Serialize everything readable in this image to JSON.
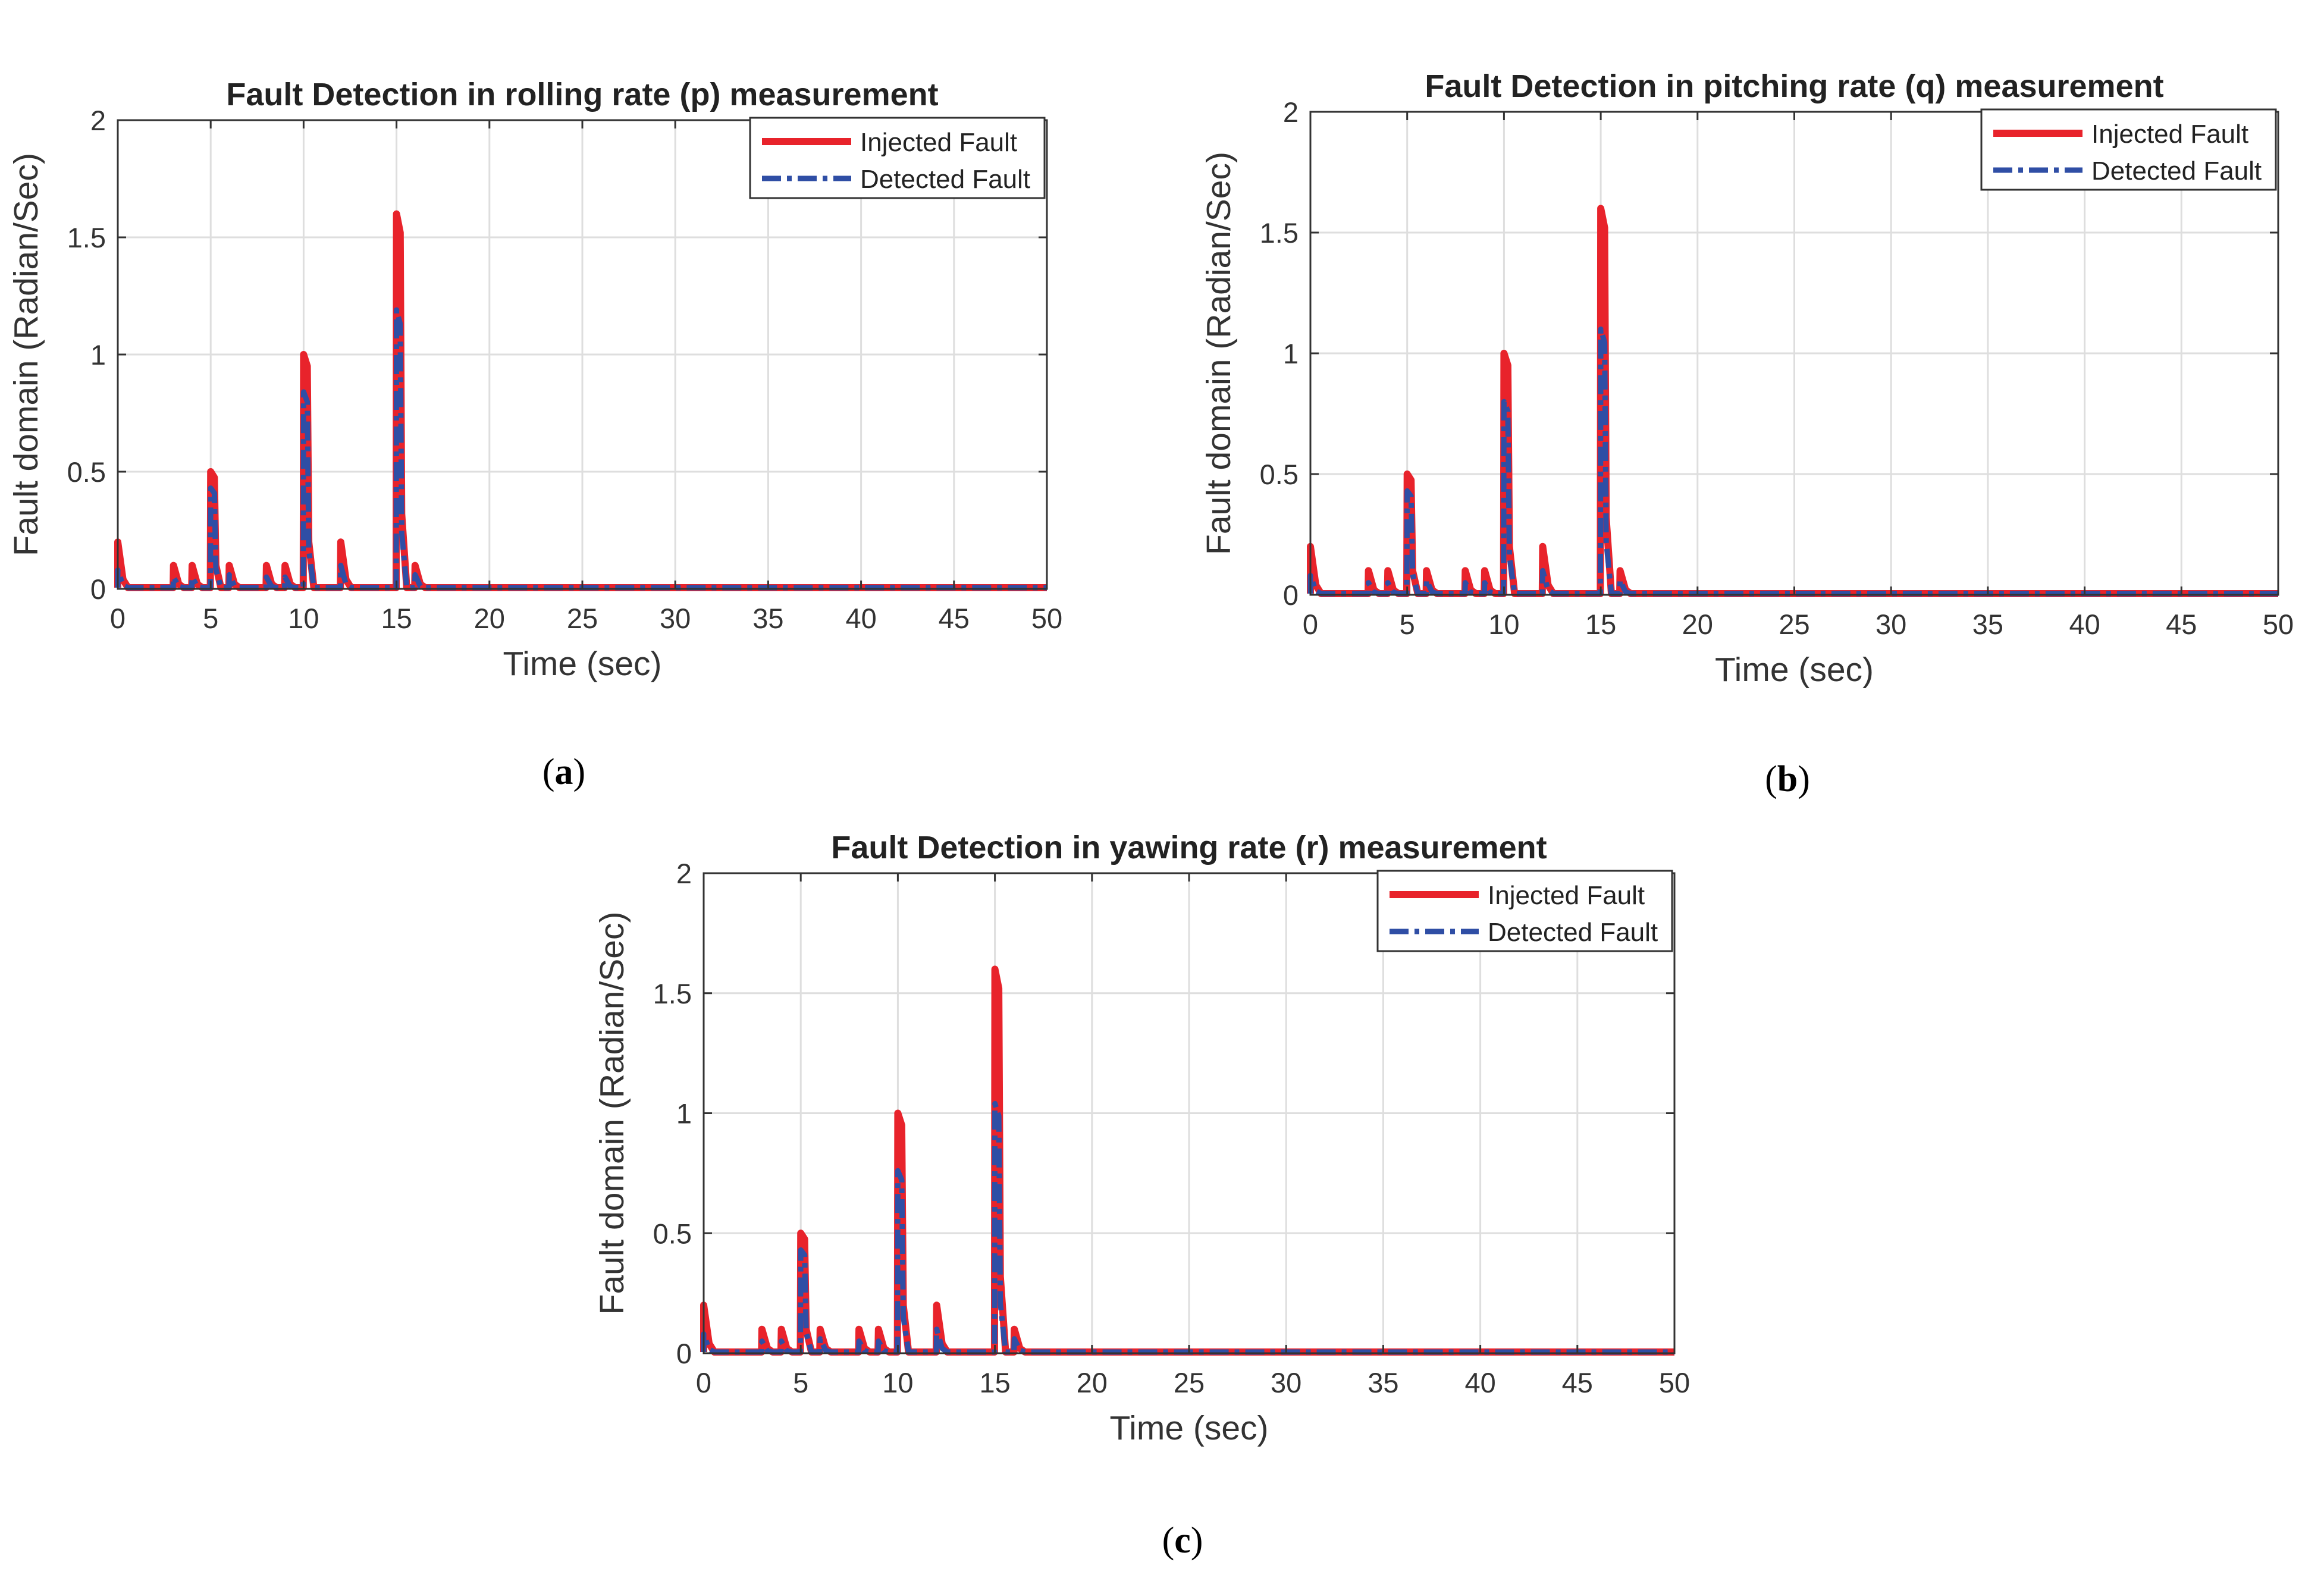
{
  "colors": {
    "injected": "#e8232b",
    "detected": "#2f4ea5",
    "grid": "#dedede",
    "axis": "#333333"
  },
  "chart_data": [
    {
      "type": "line",
      "panel_label": "a",
      "title": "Fault Detection in rolling rate (p) measurement",
      "xlabel": "Time (sec)",
      "ylabel": "Fault domain (Radian/Sec)",
      "xlim": [
        0,
        50
      ],
      "ylim": [
        0,
        2
      ],
      "xticks": [
        0,
        5,
        10,
        15,
        20,
        25,
        30,
        35,
        40,
        45,
        50
      ],
      "yticks": [
        0,
        0.5,
        1,
        1.5,
        2
      ],
      "ytick_labels": [
        "0",
        "0.5",
        "1",
        "1.5",
        "2"
      ],
      "grid": true,
      "legend_location": "top-right",
      "series": [
        {
          "name": "Injected Fault",
          "style": "solid",
          "spikes": [
            [
              0,
              0.2
            ],
            [
              3,
              0.1
            ],
            [
              4,
              0.1
            ],
            [
              5,
              0.5
            ],
            [
              6,
              0.1
            ],
            [
              8,
              0.1
            ],
            [
              9,
              0.1
            ],
            [
              10,
              1.0
            ],
            [
              12,
              0.2
            ],
            [
              15,
              1.6
            ],
            [
              16,
              0.1
            ]
          ]
        },
        {
          "name": "Detected Fault",
          "style": "dash-dot",
          "spikes": [
            [
              0,
              0.08
            ],
            [
              3,
              0.05
            ],
            [
              4,
              0.05
            ],
            [
              5,
              0.43
            ],
            [
              6,
              0.06
            ],
            [
              8,
              0.05
            ],
            [
              9,
              0.05
            ],
            [
              10,
              0.84
            ],
            [
              12,
              0.1
            ],
            [
              15,
              1.19
            ],
            [
              16,
              0.06
            ]
          ]
        }
      ]
    },
    {
      "type": "line",
      "panel_label": "b",
      "title": "Fault Detection in pitching rate (q) measurement",
      "xlabel": "Time (sec)",
      "ylabel": "Fault domain (Radian/Sec)",
      "xlim": [
        0,
        50
      ],
      "ylim": [
        0,
        2
      ],
      "xticks": [
        0,
        5,
        10,
        15,
        20,
        25,
        30,
        35,
        40,
        45,
        50
      ],
      "yticks": [
        0,
        0.5,
        1,
        1.5,
        2
      ],
      "ytick_labels": [
        "0",
        "0.5",
        "1",
        "1.5",
        "2"
      ],
      "grid": true,
      "legend_location": "top-right",
      "series": [
        {
          "name": "Injected Fault",
          "style": "solid",
          "spikes": [
            [
              0,
              0.2
            ],
            [
              3,
              0.1
            ],
            [
              4,
              0.1
            ],
            [
              5,
              0.5
            ],
            [
              6,
              0.1
            ],
            [
              8,
              0.1
            ],
            [
              9,
              0.1
            ],
            [
              10,
              1.0
            ],
            [
              12,
              0.2
            ],
            [
              15,
              1.6
            ],
            [
              16,
              0.1
            ]
          ]
        },
        {
          "name": "Detected Fault",
          "style": "dash-dot",
          "spikes": [
            [
              0,
              0.08
            ],
            [
              3,
              0.05
            ],
            [
              4,
              0.05
            ],
            [
              5,
              0.43
            ],
            [
              6,
              0.06
            ],
            [
              8,
              0.05
            ],
            [
              9,
              0.05
            ],
            [
              10,
              0.8
            ],
            [
              12,
              0.1
            ],
            [
              15,
              1.1
            ],
            [
              16,
              0.06
            ]
          ]
        }
      ]
    },
    {
      "type": "line",
      "panel_label": "c",
      "title": "Fault Detection in yawing rate (r) measurement",
      "xlabel": "Time (sec)",
      "ylabel": "Fault domain (Radian/Sec)",
      "xlim": [
        0,
        50
      ],
      "ylim": [
        0,
        2
      ],
      "xticks": [
        0,
        5,
        10,
        15,
        20,
        25,
        30,
        35,
        40,
        45,
        50
      ],
      "yticks": [
        0,
        0.5,
        1,
        1.5,
        2
      ],
      "ytick_labels": [
        "0",
        "0.5",
        "1",
        "1.5",
        "2"
      ],
      "grid": true,
      "legend_location": "top-right",
      "series": [
        {
          "name": "Injected Fault",
          "style": "solid",
          "spikes": [
            [
              0,
              0.2
            ],
            [
              3,
              0.1
            ],
            [
              4,
              0.1
            ],
            [
              5,
              0.5
            ],
            [
              6,
              0.1
            ],
            [
              8,
              0.1
            ],
            [
              9,
              0.1
            ],
            [
              10,
              1.0
            ],
            [
              12,
              0.2
            ],
            [
              15,
              1.6
            ],
            [
              16,
              0.1
            ]
          ]
        },
        {
          "name": "Detected Fault",
          "style": "dash-dot",
          "spikes": [
            [
              0,
              0.08
            ],
            [
              3,
              0.05
            ],
            [
              4,
              0.05
            ],
            [
              5,
              0.43
            ],
            [
              6,
              0.06
            ],
            [
              8,
              0.05
            ],
            [
              9,
              0.05
            ],
            [
              10,
              0.76
            ],
            [
              12,
              0.1
            ],
            [
              15,
              1.04
            ],
            [
              16,
              0.06
            ]
          ]
        }
      ]
    }
  ]
}
